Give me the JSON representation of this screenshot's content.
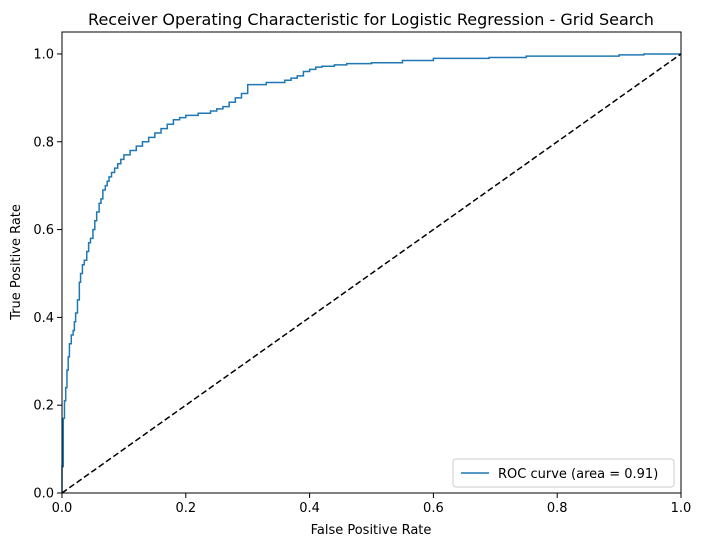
{
  "chart_data": {
    "type": "line",
    "title": "Receiver Operating Characteristic for Logistic Regression - Grid Search",
    "xlabel": "False Positive Rate",
    "ylabel": "True Positive Rate",
    "xlim": [
      0.0,
      1.0
    ],
    "ylim": [
      0.0,
      1.05
    ],
    "xticks": [
      "0.0",
      "0.2",
      "0.4",
      "0.6",
      "0.8",
      "1.0"
    ],
    "yticks": [
      "0.0",
      "0.2",
      "0.4",
      "0.6",
      "0.8",
      "1.0"
    ],
    "grid": false,
    "legend_position": "lower-right",
    "series": [
      {
        "name": "ROC curve (area = 0.91)",
        "color": "#1f77b4",
        "style": "solid",
        "step": true,
        "x": [
          0.0,
          0.0,
          0.002,
          0.004,
          0.006,
          0.008,
          0.01,
          0.012,
          0.015,
          0.018,
          0.02,
          0.022,
          0.025,
          0.028,
          0.03,
          0.033,
          0.036,
          0.04,
          0.043,
          0.046,
          0.05,
          0.053,
          0.056,
          0.06,
          0.063,
          0.066,
          0.07,
          0.073,
          0.076,
          0.08,
          0.085,
          0.09,
          0.095,
          0.1,
          0.105,
          0.11,
          0.12,
          0.13,
          0.14,
          0.15,
          0.16,
          0.17,
          0.18,
          0.19,
          0.2,
          0.22,
          0.24,
          0.25,
          0.26,
          0.27,
          0.28,
          0.29,
          0.3,
          0.33,
          0.36,
          0.37,
          0.38,
          0.39,
          0.4,
          0.41,
          0.42,
          0.44,
          0.46,
          0.5,
          0.55,
          0.6,
          0.69,
          0.75,
          0.9,
          0.94,
          1.0
        ],
        "y": [
          0.0,
          0.06,
          0.17,
          0.21,
          0.24,
          0.28,
          0.31,
          0.34,
          0.36,
          0.37,
          0.39,
          0.41,
          0.44,
          0.48,
          0.5,
          0.52,
          0.53,
          0.55,
          0.57,
          0.58,
          0.6,
          0.62,
          0.64,
          0.66,
          0.67,
          0.69,
          0.7,
          0.71,
          0.72,
          0.73,
          0.74,
          0.75,
          0.76,
          0.77,
          0.77,
          0.78,
          0.79,
          0.8,
          0.81,
          0.82,
          0.83,
          0.84,
          0.85,
          0.855,
          0.86,
          0.865,
          0.87,
          0.875,
          0.88,
          0.89,
          0.9,
          0.91,
          0.93,
          0.935,
          0.94,
          0.945,
          0.95,
          0.96,
          0.965,
          0.97,
          0.972,
          0.975,
          0.978,
          0.98,
          0.985,
          0.99,
          0.992,
          0.995,
          0.998,
          1.0,
          1.0
        ]
      },
      {
        "color": "#000000",
        "style": "dashed",
        "step": false,
        "x": [
          0.0,
          1.0
        ],
        "y": [
          0.0,
          1.0
        ]
      }
    ]
  }
}
